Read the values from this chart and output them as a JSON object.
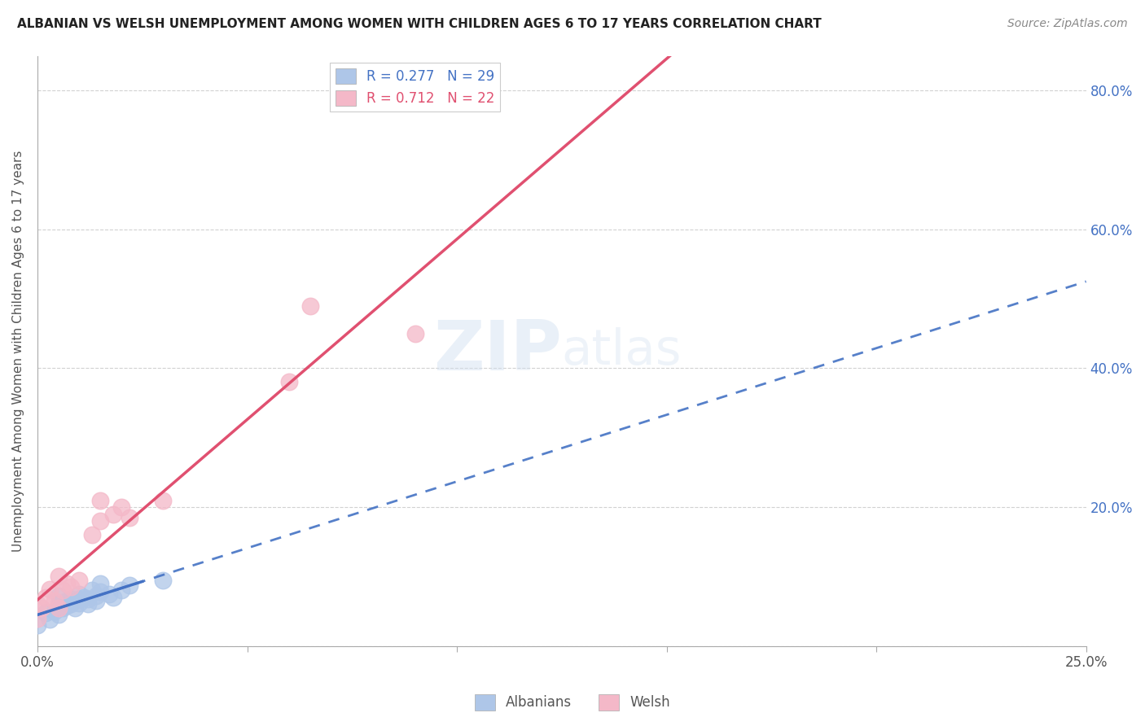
{
  "title": "ALBANIAN VS WELSH UNEMPLOYMENT AMONG WOMEN WITH CHILDREN AGES 6 TO 17 YEARS CORRELATION CHART",
  "source": "Source: ZipAtlas.com",
  "ylabel": "Unemployment Among Women with Children Ages 6 to 17 years",
  "xlim": [
    0.0,
    0.25
  ],
  "ylim": [
    0.0,
    0.85
  ],
  "xtick_positions": [
    0.0,
    0.05,
    0.1,
    0.15,
    0.2,
    0.25
  ],
  "xticklabels": [
    "0.0%",
    "",
    "",
    "",
    "",
    "25.0%"
  ],
  "ytick_positions": [
    0.0,
    0.2,
    0.4,
    0.6,
    0.8
  ],
  "yticklabels_right": [
    "",
    "20.0%",
    "40.0%",
    "60.0%",
    "80.0%"
  ],
  "albanian_R": 0.277,
  "albanian_N": 29,
  "welsh_R": 0.712,
  "welsh_N": 22,
  "albanian_face_color": "#aec6e8",
  "albanian_line_color": "#4472c4",
  "welsh_face_color": "#f4b8c8",
  "welsh_line_color": "#e05070",
  "watermark": "ZIPatlas",
  "albanian_x": [
    0.0,
    0.002,
    0.003,
    0.004,
    0.005,
    0.005,
    0.005,
    0.006,
    0.007,
    0.007,
    0.008,
    0.008,
    0.009,
    0.01,
    0.01,
    0.01,
    0.011,
    0.012,
    0.012,
    0.013,
    0.014,
    0.014,
    0.015,
    0.015,
    0.017,
    0.018,
    0.02,
    0.022,
    0.03
  ],
  "albanian_y": [
    0.03,
    0.048,
    0.038,
    0.05,
    0.045,
    0.06,
    0.072,
    0.055,
    0.058,
    0.065,
    0.06,
    0.068,
    0.055,
    0.062,
    0.068,
    0.075,
    0.07,
    0.06,
    0.068,
    0.08,
    0.065,
    0.072,
    0.078,
    0.09,
    0.075,
    0.07,
    0.08,
    0.088,
    0.095
  ],
  "welsh_x": [
    0.0,
    0.0,
    0.001,
    0.002,
    0.003,
    0.004,
    0.005,
    0.005,
    0.006,
    0.007,
    0.008,
    0.01,
    0.013,
    0.015,
    0.015,
    0.018,
    0.02,
    0.022,
    0.03,
    0.06,
    0.065,
    0.09
  ],
  "welsh_y": [
    0.04,
    0.06,
    0.055,
    0.07,
    0.082,
    0.065,
    0.055,
    0.1,
    0.08,
    0.09,
    0.085,
    0.095,
    0.16,
    0.18,
    0.21,
    0.19,
    0.2,
    0.185,
    0.21,
    0.38,
    0.49,
    0.45
  ]
}
